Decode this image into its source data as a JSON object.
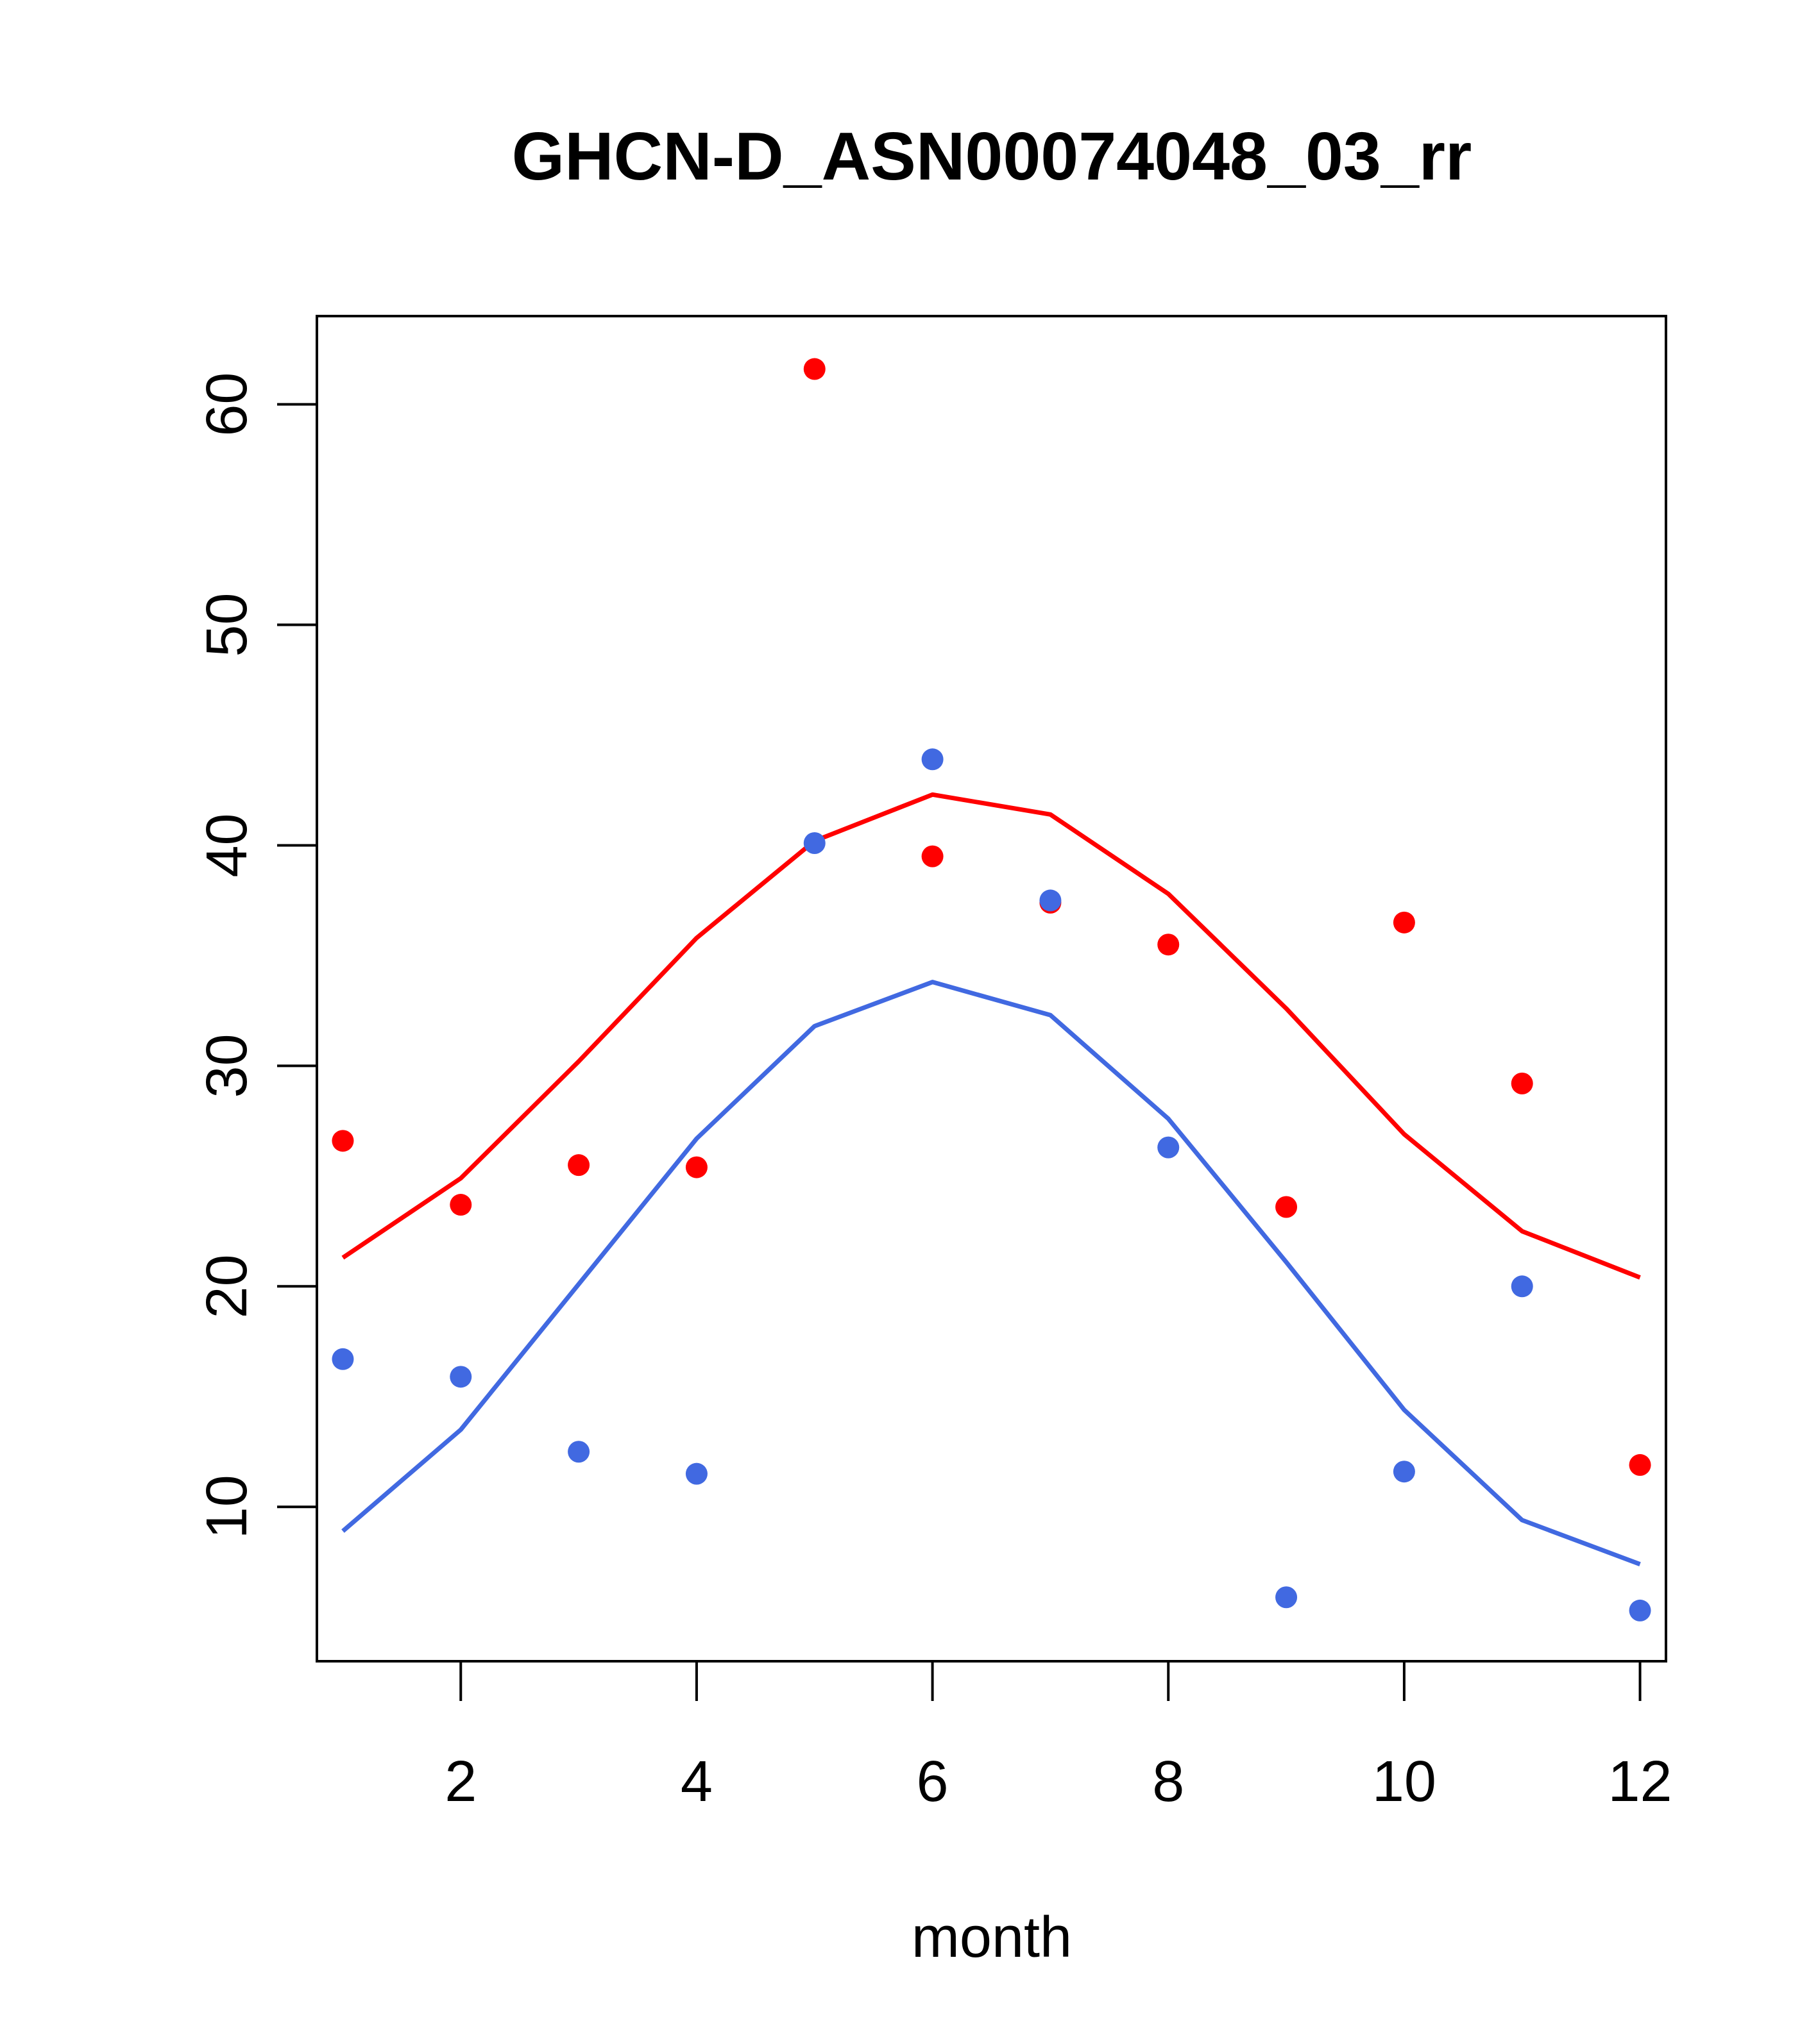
{
  "chart_data": {
    "type": "scatter",
    "title": "GHCN-D_ASN00074048_03_rr",
    "xlabel": "month",
    "ylabel": "",
    "xlim": [
      0.78,
      12.22
    ],
    "ylim": [
      3.0,
      64.0
    ],
    "x_ticks": [
      2,
      4,
      6,
      8,
      10,
      12
    ],
    "y_ticks": [
      10,
      20,
      30,
      40,
      50,
      60
    ],
    "series": [
      {
        "name": "red points",
        "kind": "points",
        "color": "#ff0000",
        "x": [
          1,
          2,
          3,
          4,
          5,
          6,
          7,
          8,
          9,
          10,
          11,
          12
        ],
        "y": [
          26.6,
          23.7,
          25.5,
          25.4,
          61.6,
          39.5,
          37.4,
          35.5,
          23.6,
          36.5,
          29.2,
          11.9
        ]
      },
      {
        "name": "blue points",
        "kind": "points",
        "color": "#4169e1",
        "x": [
          1,
          2,
          3,
          4,
          5,
          6,
          7,
          8,
          9,
          10,
          11,
          12
        ],
        "y": [
          16.7,
          15.9,
          12.5,
          11.5,
          40.1,
          43.9,
          37.5,
          26.3,
          5.9,
          11.6,
          20.0,
          5.3
        ]
      },
      {
        "name": "red line",
        "kind": "line",
        "color": "#ff0000",
        "x": [
          1,
          2,
          3,
          4,
          5,
          6,
          7,
          8,
          9,
          10,
          11,
          12
        ],
        "y": [
          21.3,
          24.9,
          30.2,
          35.8,
          40.2,
          42.3,
          41.4,
          37.8,
          32.6,
          26.9,
          22.5,
          20.4
        ]
      },
      {
        "name": "blue line",
        "kind": "line",
        "color": "#4169e1",
        "x": [
          1,
          2,
          3,
          4,
          5,
          6,
          7,
          8,
          9,
          10,
          11,
          12
        ],
        "y": [
          8.9,
          13.5,
          20.1,
          26.7,
          31.8,
          33.8,
          32.3,
          27.6,
          21.1,
          14.4,
          9.4,
          7.4
        ]
      }
    ]
  }
}
